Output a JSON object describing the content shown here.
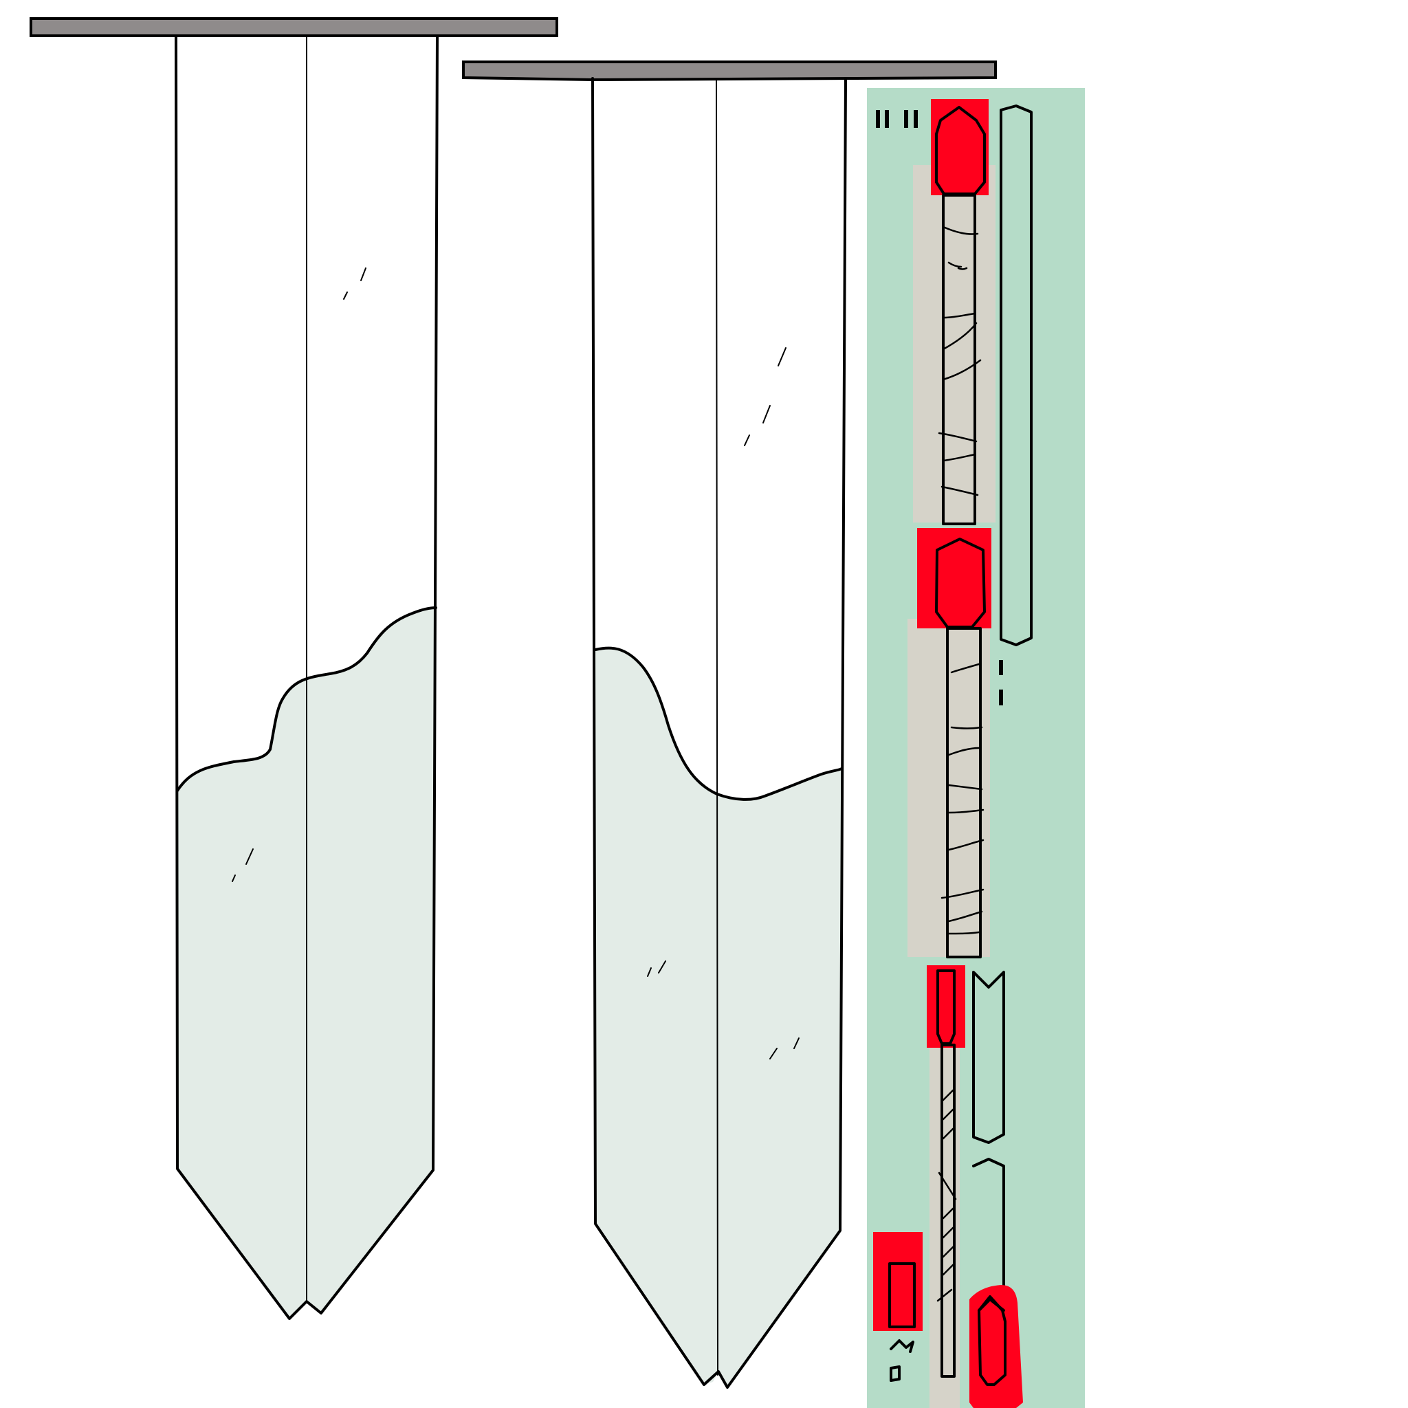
{
  "canvas": {
    "background": "#ffffff"
  },
  "palette": {
    "ink": "#000000",
    "rail": "#8f8b8b",
    "panel_water": "#e3ece7",
    "mint_panel": "#b5dcc8",
    "beige_strip": "#d6d3c9",
    "highlight": "#ff001c",
    "paper": "#ffffff"
  },
  "curtains": [
    {
      "name": "left-curtain",
      "rail": "gray",
      "fill_level": "partial"
    },
    {
      "name": "middle-curtain",
      "rail": "gray",
      "fill_level": "partial"
    }
  ],
  "sidebar": {
    "background": "mint",
    "marks_top": "II II",
    "marked_parts": [
      "top-cap",
      "middle-cap",
      "lower-cap",
      "side-block",
      "bottom-right-cap"
    ]
  }
}
